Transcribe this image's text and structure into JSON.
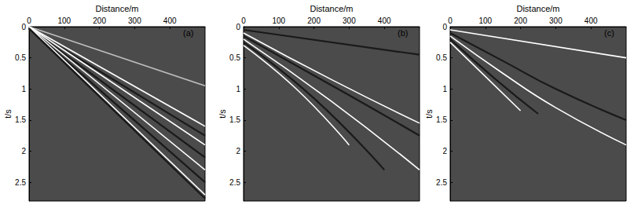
{
  "chart_data": [
    {
      "type": "line",
      "annotation": "(a)",
      "xlabel": "Distance/m",
      "ylabel": "t/s",
      "xlim": [
        0,
        500
      ],
      "xticks": [
        0,
        100,
        200,
        300,
        400
      ],
      "ylim": [
        0,
        2.8
      ],
      "yticks": [
        0,
        0.5,
        1,
        1.5,
        2,
        2.5
      ],
      "series": [
        {
          "color": "#bdbdbd",
          "x": [
            0,
            500
          ],
          "values": [
            0,
            0.95
          ]
        },
        {
          "color": "#ffffff",
          "x": [
            0,
            500
          ],
          "values": [
            0,
            1.6
          ]
        },
        {
          "color": "#1a1a1a",
          "x": [
            0,
            500
          ],
          "values": [
            0.02,
            1.75
          ]
        },
        {
          "color": "#ffffff",
          "x": [
            0,
            500
          ],
          "values": [
            0,
            1.9
          ]
        },
        {
          "color": "#1a1a1a",
          "x": [
            0,
            500
          ],
          "values": [
            0.02,
            2.1
          ]
        },
        {
          "color": "#ffffff",
          "x": [
            0,
            500
          ],
          "values": [
            0,
            2.3
          ]
        },
        {
          "color": "#1a1a1a",
          "x": [
            0,
            500
          ],
          "values": [
            0.02,
            2.5
          ]
        },
        {
          "color": "#ffffff",
          "x": [
            0,
            500
          ],
          "values": [
            0,
            2.7
          ]
        },
        {
          "color": "#1a1a1a",
          "x": [
            0,
            500
          ],
          "values": [
            0.03,
            2.76
          ]
        }
      ]
    },
    {
      "type": "line",
      "annotation": "(b)",
      "xlabel": "Distance/m",
      "ylabel": "t/s",
      "xlim": [
        0,
        500
      ],
      "xticks": [
        0,
        100,
        200,
        300,
        400
      ],
      "ylim": [
        0,
        2.8
      ],
      "yticks": [
        0,
        0.5,
        1,
        1.5,
        2,
        2.5
      ],
      "series": [
        {
          "color": "#1a1a1a",
          "x": [
            0,
            500
          ],
          "values": [
            0.05,
            0.45
          ]
        },
        {
          "color": "#ffffff",
          "x": [
            0,
            250,
            500
          ],
          "values": [
            0.1,
            0.85,
            1.55
          ]
        },
        {
          "color": "#1a1a1a",
          "x": [
            0,
            300,
            500
          ],
          "values": [
            0.15,
            1.1,
            1.75
          ]
        },
        {
          "color": "#ffffff",
          "x": [
            0,
            250,
            500
          ],
          "values": [
            0.2,
            1.2,
            2.3
          ]
        },
        {
          "color": "#1a1a1a",
          "x": [
            0,
            200,
            400
          ],
          "values": [
            0.25,
            1.15,
            2.3
          ]
        },
        {
          "color": "#ffffff",
          "x": [
            0,
            150,
            300
          ],
          "values": [
            0.3,
            1.0,
            1.9
          ]
        }
      ]
    },
    {
      "type": "line",
      "annotation": "(c)",
      "xlabel": "Distance/m",
      "ylabel": "t/s",
      "xlim": [
        0,
        500
      ],
      "xticks": [
        0,
        100,
        200,
        300,
        400
      ],
      "ylim": [
        0,
        2.8
      ],
      "yticks": [
        0,
        0.5,
        1,
        1.5,
        2,
        2.5
      ],
      "series": [
        {
          "color": "#ffffff",
          "x": [
            0,
            500
          ],
          "values": [
            0.05,
            0.5
          ]
        },
        {
          "color": "#1a1a1a",
          "x": [
            0,
            150,
            300,
            500
          ],
          "values": [
            0.1,
            0.55,
            1.0,
            1.5
          ]
        },
        {
          "color": "#ffffff",
          "x": [
            0,
            150,
            300,
            500
          ],
          "values": [
            0.15,
            0.75,
            1.3,
            1.9
          ]
        },
        {
          "color": "#1a1a1a",
          "x": [
            0,
            130,
            250
          ],
          "values": [
            0.2,
            0.85,
            1.4
          ]
        },
        {
          "color": "#ffffff",
          "x": [
            0,
            100,
            200
          ],
          "values": [
            0.25,
            0.8,
            1.35
          ]
        }
      ]
    }
  ]
}
